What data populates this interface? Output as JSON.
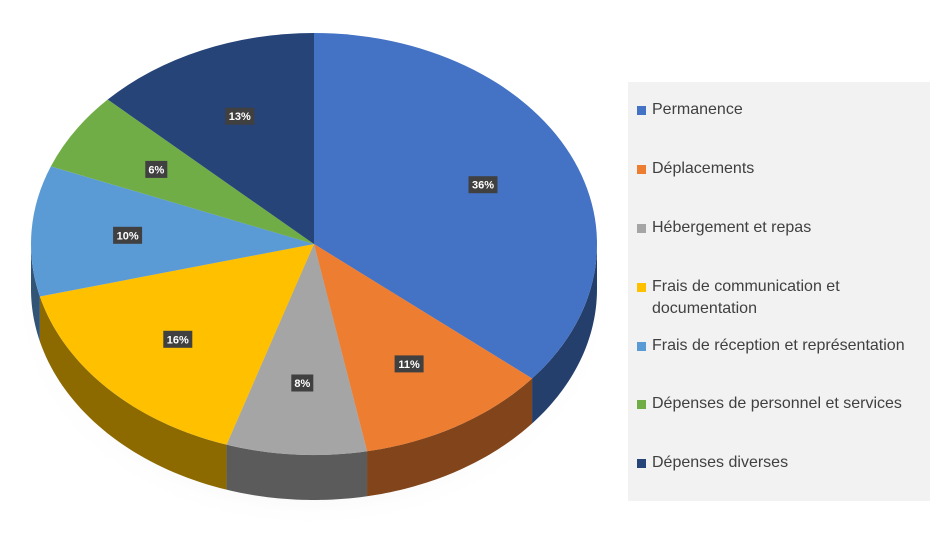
{
  "chart_data": {
    "type": "pie",
    "title": "",
    "categories": [
      "Permanence",
      "Déplacements",
      "Hébergement et repas",
      "Frais de communication et documentation",
      "Frais de réception et représentation",
      "Dépenses de personnel et services",
      "Dépenses diverses"
    ],
    "values": [
      36,
      11,
      8,
      16,
      10,
      6,
      13
    ],
    "value_labels": [
      "36%",
      "11%",
      "8%",
      "16%",
      "10%",
      "6%",
      "13%"
    ],
    "colors": [
      "#4472c4",
      "#ed7d31",
      "#a5a5a5",
      "#ffc000",
      "#5b9bd5",
      "#70ad47",
      "#264478"
    ],
    "legend": {
      "position": "right",
      "items": [
        {
          "label": "Permanence",
          "color": "#4472c4"
        },
        {
          "label": "Déplacements",
          "color": "#ed7d31"
        },
        {
          "label": "Hébergement et repas",
          "color": "#a5a5a5"
        },
        {
          "label": "Frais de communication et documentation",
          "color": "#ffc000"
        },
        {
          "label": "Frais de réception et représentation",
          "color": "#5b9bd5"
        },
        {
          "label": "Dépenses de personnel et services",
          "color": "#70ad47"
        },
        {
          "label": "Dépenses diverses",
          "color": "#264478"
        }
      ]
    },
    "style": "3d"
  }
}
